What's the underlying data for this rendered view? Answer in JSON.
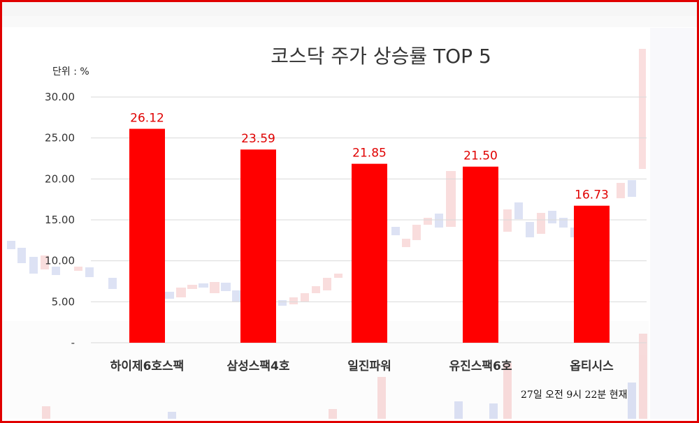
{
  "chart_data": {
    "type": "bar",
    "title": "코스닥 주가 상승률 TOP 5",
    "unit_label": "단위 : %",
    "categories": [
      "하이제6호스팩",
      "삼성스팩4호",
      "일진파워",
      "유진스팩6호",
      "옵티시스"
    ],
    "values": [
      26.12,
      23.59,
      21.85,
      21.5,
      16.73
    ],
    "data_labels": [
      "26.12",
      "23.59",
      "21.85",
      "21.50",
      "16.73"
    ],
    "y_ticks": [
      "30.00",
      "25.00",
      "20.00",
      "15.00",
      "10.00",
      "5.00",
      "-"
    ],
    "ylim": [
      0,
      30
    ],
    "bar_color": "#ff0000",
    "label_color": "#e00000",
    "grid": true,
    "footnote": "27일  오전 9시 22분 현재"
  },
  "colors": {
    "frame": "#e00000"
  }
}
